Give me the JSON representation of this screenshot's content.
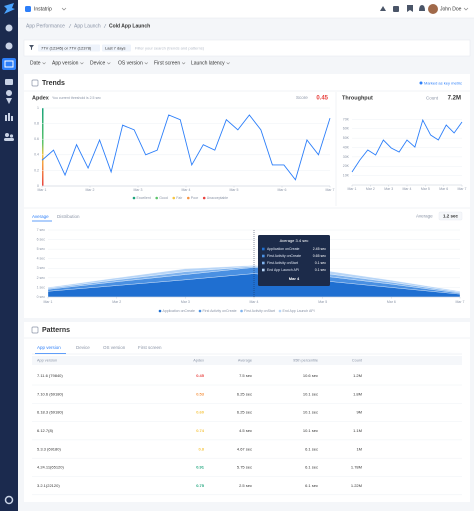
{
  "top_bar": {
    "app": "Instatrip",
    "user": "John Doe"
  },
  "breadcrumb": [
    "App Performance",
    "App Launch",
    "Cold App Launch"
  ],
  "filter": {
    "chip": "7TV (12345) or 7TV (12378)",
    "range": "Last 7 days",
    "placeholder": "Filter your search (trends and patterns)"
  },
  "dropdowns": [
    "Date",
    "App version",
    "Device",
    "OS version",
    "First screen",
    "Launch latency"
  ],
  "trends": {
    "title": "Trends",
    "key_metric": "Marked as key metric"
  },
  "chart_data": [
    {
      "type": "line",
      "title": "Apdex",
      "subtitle": "You current threshold is 2.5 sec",
      "score_label": "Score",
      "score": 0.45,
      "score_color": "#e8423f",
      "color": "#2d7ff9",
      "x": [
        1,
        1.24,
        1.48,
        1.72,
        1.96,
        2.2,
        2.44,
        2.68,
        2.92,
        3.16,
        3.4,
        3.64,
        3.88,
        4.12,
        4.36,
        4.6,
        4.84,
        5.08,
        5.32,
        5.56,
        5.8,
        6.04,
        6.28,
        6.52,
        6.76,
        7
      ],
      "values": [
        0.33,
        0.46,
        0.14,
        0.53,
        0.23,
        0.59,
        0.18,
        0.78,
        0.72,
        0.4,
        0.46,
        0.91,
        0.85,
        0.27,
        0.53,
        0.46,
        0.85,
        0.72,
        0.91,
        0.72,
        0.27,
        0.27,
        0.08,
        0.59,
        0.4,
        0.87
      ],
      "xlim": [
        1,
        7
      ],
      "xticks": [
        {
          "value": 1,
          "label": "Mar 1"
        },
        {
          "value": 2,
          "label": "Mar 2"
        },
        {
          "value": 3,
          "label": "Mar 3"
        },
        {
          "value": 4,
          "label": "Mar 4"
        },
        {
          "value": 5,
          "label": "Mar 5"
        },
        {
          "value": 6,
          "label": "Mar 6"
        },
        {
          "value": 7,
          "label": "Mar 7"
        }
      ],
      "ylim": [
        0,
        1
      ],
      "yticks": [
        0,
        0.2,
        0.4,
        0.6,
        0.8,
        1
      ],
      "grid": true,
      "legend": [
        {
          "name": "Excellent",
          "color": "#1aa37a"
        },
        {
          "name": "Good",
          "color": "#5cc46b"
        },
        {
          "name": "Fair",
          "color": "#f5c542"
        },
        {
          "name": "Poor",
          "color": "#f59342"
        },
        {
          "name": "Unacceptable",
          "color": "#e8423f"
        }
      ]
    },
    {
      "type": "line",
      "title": "Throughput",
      "count_label": "Count",
      "count": "7.2M",
      "color": "#2d7ff9",
      "x": [
        1,
        1.43,
        1.86,
        2.29,
        2.71,
        3.14,
        3.57,
        4,
        4.43,
        4.86,
        5.29,
        5.71,
        6.14,
        6.57,
        7
      ],
      "values": [
        13.9,
        26.7,
        37.3,
        32,
        48,
        39.5,
        35.2,
        48,
        40.5,
        69.3,
        53.3,
        48,
        64,
        55.5,
        67.2
      ],
      "xlim": [
        1,
        7
      ],
      "xticks": [
        {
          "value": 1,
          "label": "Mar 1"
        },
        {
          "value": 2,
          "label": "Mar 2"
        },
        {
          "value": 3,
          "label": "Mar 3"
        },
        {
          "value": 4,
          "label": "Mar 4"
        },
        {
          "value": 5,
          "label": "Mar 5"
        },
        {
          "value": 6,
          "label": "Mar 6"
        },
        {
          "value": 7,
          "label": "Mar 7"
        }
      ],
      "ylim": [
        0,
        80
      ],
      "yticks": [
        {
          "value": 10,
          "label": "10K"
        },
        {
          "value": 20,
          "label": "20K"
        },
        {
          "value": 30,
          "label": "30K"
        },
        {
          "value": 40,
          "label": "40K"
        },
        {
          "value": 50,
          "label": "50K"
        },
        {
          "value": 60,
          "label": "60K"
        },
        {
          "value": 70,
          "label": "70K"
        }
      ],
      "grid": true
    },
    {
      "type": "area",
      "stacked": true,
      "tabs": [
        "Average",
        "Distribution"
      ],
      "average_label": "Average",
      "average": "1.2 sec",
      "categories": [
        "Mar 1",
        "Mar 2",
        "Mar 3",
        "Mar 4",
        "Mar 5",
        "Mar 6",
        "Mar 7"
      ],
      "series": [
        {
          "name": "Application onCreate",
          "color": "#1f6fd1",
          "values": [
            0.6,
            1.2,
            1.8,
            2.45,
            1.7,
            1.0,
            0.3
          ]
        },
        {
          "name": "First Activity onCreate",
          "color": "#4a90e2",
          "values": [
            0.2,
            0.4,
            0.55,
            0.65,
            0.5,
            0.35,
            0.1
          ]
        },
        {
          "name": "First Activity onStart",
          "color": "#7fb3ee",
          "values": [
            0.1,
            0.2,
            0.3,
            0.1,
            0.3,
            0.2,
            0.1
          ]
        },
        {
          "name": "End App Launch API",
          "color": "#b7d5f7",
          "values": [
            0.1,
            0.2,
            0.3,
            0.1,
            0.3,
            0.2,
            0.1
          ]
        }
      ],
      "ylim": [
        0,
        7
      ],
      "yticks": [
        {
          "value": 0,
          "label": "0 sec"
        },
        {
          "value": 1,
          "label": "1 sec"
        },
        {
          "value": 2,
          "label": "2 sec"
        },
        {
          "value": 3,
          "label": "3 sec"
        },
        {
          "value": 4,
          "label": "4 sec"
        },
        {
          "value": 5,
          "label": "5 sec"
        },
        {
          "value": 6,
          "label": "6 sec"
        },
        {
          "value": 7,
          "label": "7 sec"
        }
      ],
      "grid": true,
      "tooltip": {
        "title": "Average 3.4 sec",
        "index": 3,
        "values": [
          "2.45 sec",
          "0.65 sec",
          "0.1 sec",
          "0.1 sec"
        ],
        "date": "Mar 4"
      }
    }
  ],
  "patterns": {
    "title": "Patterns",
    "tabs": [
      "App version",
      "Device",
      "OS version",
      "First screen"
    ],
    "columns": [
      "App version",
      "Apdex",
      "Average",
      "95th percentile",
      "Count"
    ],
    "rows": [
      [
        "7.11.6 (79840)",
        "0.45",
        "7.5 sec",
        "10.6 sec",
        "1.2M"
      ],
      [
        "7.10.6 (69180)",
        "0.53",
        "6.25 sec",
        "10.1 sec",
        "1.8M"
      ],
      [
        "6.18.3 (69180)",
        "0.60",
        "6.25 sec",
        "10.1 sec",
        "9M"
      ],
      [
        "6.12.7(8)",
        "0.74",
        "4.5 sec",
        "10.1 sec",
        "1.1M"
      ],
      [
        "5.3.3 (69180)",
        "0.8",
        "4.67 sec",
        "6.1 sec",
        "1M"
      ],
      [
        "4.24.11(65120)",
        "0.91",
        "5.75 sec",
        "6.1 sec",
        "1.78M"
      ],
      [
        "3.2.1(22120)",
        "0.75",
        "2.5 sec",
        "6.1 sec",
        "1.22M"
      ]
    ],
    "apdex_colors": [
      "#e8423f",
      "#f59342",
      "#f5c542",
      "#f5c542",
      "#f5c542",
      "#1aa37a",
      "#1aa37a"
    ]
  }
}
